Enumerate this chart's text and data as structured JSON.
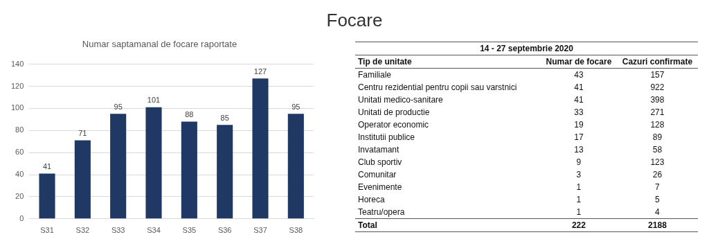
{
  "chart_data": [
    {
      "type": "bar",
      "title": "Numar saptamanal de focare raportate",
      "categories": [
        "S31",
        "S32",
        "S33",
        "S34",
        "S35",
        "S36",
        "S37",
        "S38"
      ],
      "values": [
        41,
        71,
        95,
        101,
        88,
        85,
        127,
        95
      ],
      "color": "#1f3864",
      "ylim": [
        0,
        140
      ],
      "yticks": [
        0,
        20,
        40,
        60,
        80,
        100,
        120,
        140
      ],
      "grid": "y",
      "data_labels": true
    },
    {
      "type": "other",
      "title": "Focare",
      "subtitle": "14 - 27 septembrie 2020",
      "xlabel": "Tip de unitate",
      "categories": [
        "Familiale",
        "Centru rezidential pentru copii sau varstnici",
        "Unitati medico-sanitare",
        "Unitati de productie",
        "Operator economic",
        "Institutii publice",
        "Invatamant",
        "Club sportiv",
        "Comunitar",
        "Evenimente",
        "Horeca",
        "Teatru/opera",
        "Total"
      ],
      "series": [
        {
          "name": "Numar de focare",
          "values": [
            43,
            41,
            41,
            33,
            19,
            17,
            13,
            9,
            3,
            1,
            1,
            1,
            222
          ]
        },
        {
          "name": "Cazuri confirmate",
          "values": [
            157,
            922,
            398,
            271,
            128,
            89,
            58,
            123,
            26,
            7,
            5,
            4,
            2188
          ]
        }
      ],
      "data_labels": true
    }
  ]
}
